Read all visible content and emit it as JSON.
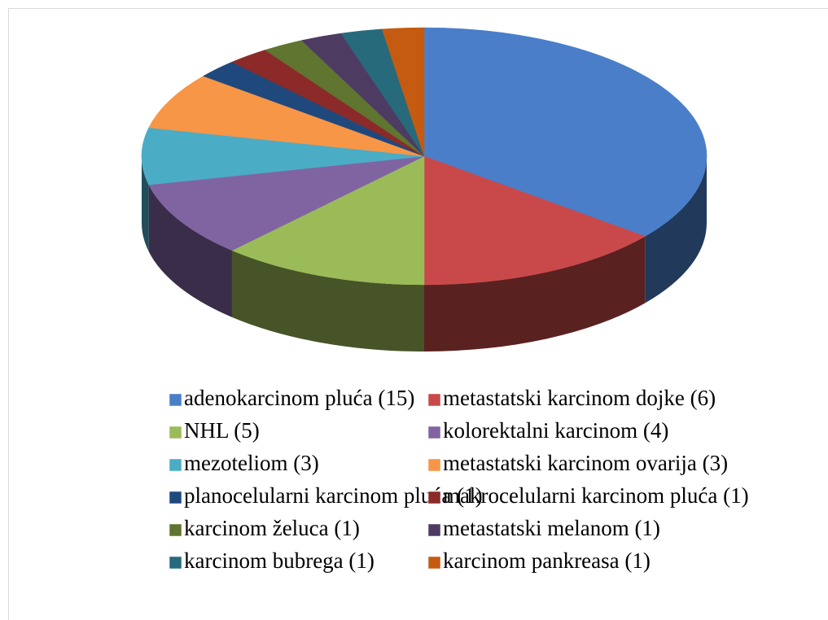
{
  "chart_data": {
    "type": "pie3d",
    "categories": [
      "adenokarcinom pluća (15)",
      "metastatski karcinom dojke (6)",
      "NHL (5)",
      "kolorektalni karcinom (4)",
      "mezoteliom (3)",
      "metastatski karcinom ovarija (3)",
      "planocelularni karcinom pluća (1)",
      "makrocelularni karcinom pluća (1)",
      "karcinom želuca (1)",
      "metastatski melanom (1)",
      "karcinom bubrega (1)",
      "karcinom pankreasa (1)"
    ],
    "values": [
      15,
      6,
      5,
      4,
      3,
      3,
      1,
      1,
      1,
      1,
      1,
      1
    ],
    "colors": [
      "#4a7ec9",
      "#c9494a",
      "#9bbb59",
      "#8064a2",
      "#4bacc6",
      "#f79646",
      "#1f497d",
      "#8b2a28",
      "#5f7530",
      "#4d3b62",
      "#276a7c",
      "#c55a11"
    ],
    "legend": "bottom"
  }
}
